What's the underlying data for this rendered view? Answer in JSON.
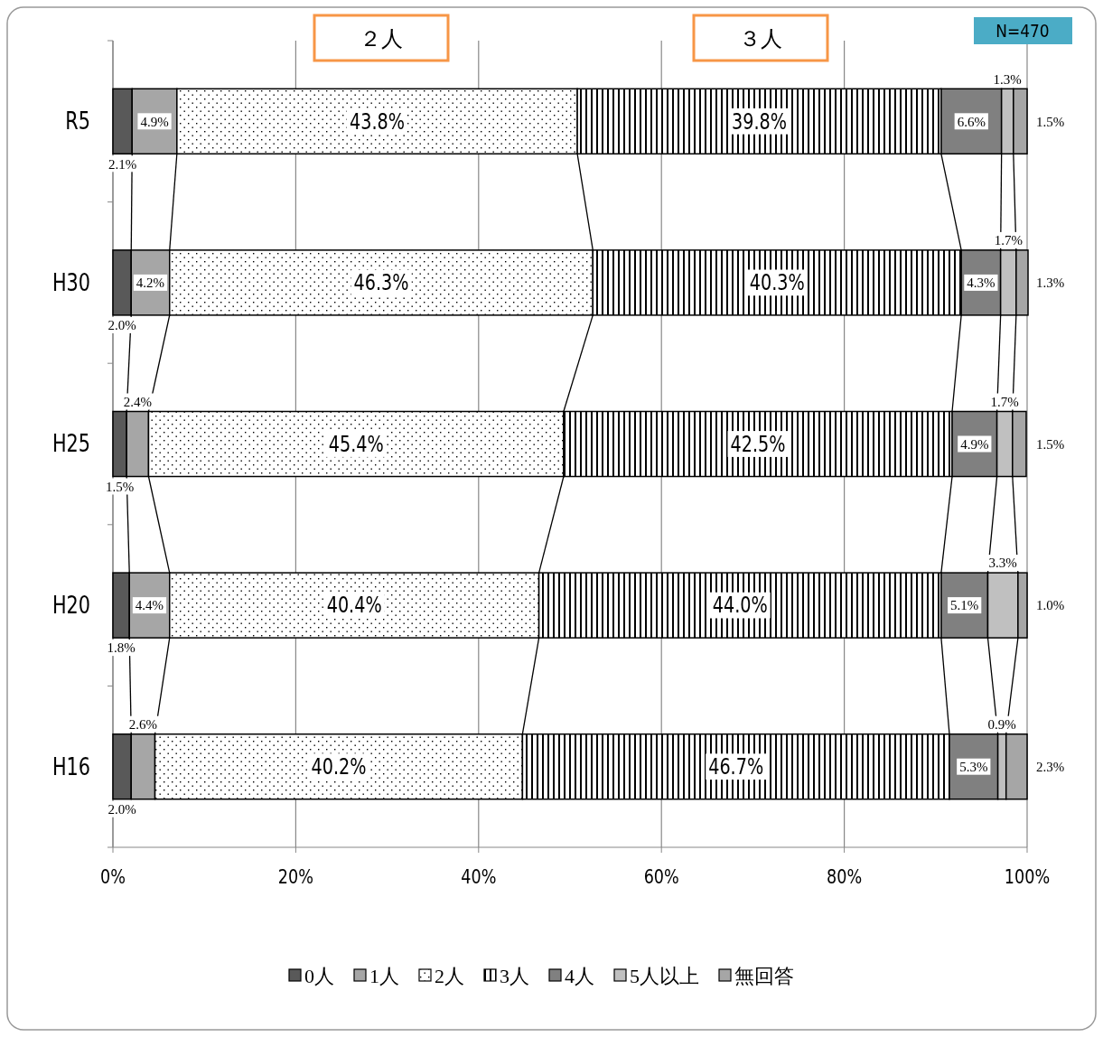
{
  "chart_data": {
    "type": "bar",
    "orientation": "horizontal",
    "stacked": true,
    "categories": [
      "R5",
      "H30",
      "H25",
      "H20",
      "H16"
    ],
    "series": [
      {
        "name": "0人",
        "color": "#595959",
        "values": [
          2.1,
          2.0,
          1.5,
          1.8,
          2.0
        ],
        "value_labels": [
          "2.1%",
          "2.0%",
          "1.5%",
          "1.8%",
          "2.0%"
        ]
      },
      {
        "name": "1人",
        "color": "#a6a6a6",
        "values": [
          4.9,
          4.2,
          2.4,
          4.4,
          2.6
        ],
        "value_labels": [
          "4.9%",
          "4.2%",
          "2.4%",
          "4.4%",
          "2.6%"
        ]
      },
      {
        "name": "2人",
        "color": "#000000",
        "values": [
          43.8,
          46.3,
          45.4,
          40.4,
          40.2
        ],
        "value_labels": [
          "43.8%",
          "46.3%",
          "45.4%",
          "40.4%",
          "40.2%"
        ]
      },
      {
        "name": "3人",
        "color": "#000000",
        "values": [
          39.8,
          40.3,
          42.5,
          44.0,
          46.7
        ],
        "value_labels": [
          "39.8%",
          "40.3%",
          "42.5%",
          "44.0%",
          "46.7%"
        ]
      },
      {
        "name": "4人",
        "color": "#808080",
        "values": [
          6.6,
          4.3,
          4.9,
          5.1,
          5.3
        ],
        "value_labels": [
          "6.6%",
          "4.3%",
          "4.9%",
          "5.1%",
          "5.3%"
        ]
      },
      {
        "name": "5人以上",
        "color": "#c0c0c0",
        "values": [
          1.3,
          1.7,
          1.7,
          3.3,
          0.9
        ],
        "value_labels": [
          "1.3%",
          "1.7%",
          "1.7%",
          "3.3%",
          "0.9%"
        ]
      },
      {
        "name": "無回答",
        "color": "#a6a6a6",
        "values": [
          1.5,
          1.3,
          1.5,
          1.0,
          2.3
        ],
        "value_labels": [
          "1.5%",
          "1.3%",
          "1.5%",
          "1.0%",
          "2.3%"
        ]
      }
    ],
    "xlim": [
      0,
      100
    ],
    "xticks": [
      {
        "value": 0,
        "label": "0%"
      },
      {
        "value": 20,
        "label": "20%"
      },
      {
        "value": 40,
        "label": "40%"
      },
      {
        "value": 60,
        "label": "60%"
      },
      {
        "value": 80,
        "label": "80%"
      },
      {
        "value": 100,
        "label": "100%"
      }
    ],
    "grid": "x",
    "legend": "bottom",
    "annotations": [
      "２人",
      "３人",
      "N=470"
    ]
  }
}
